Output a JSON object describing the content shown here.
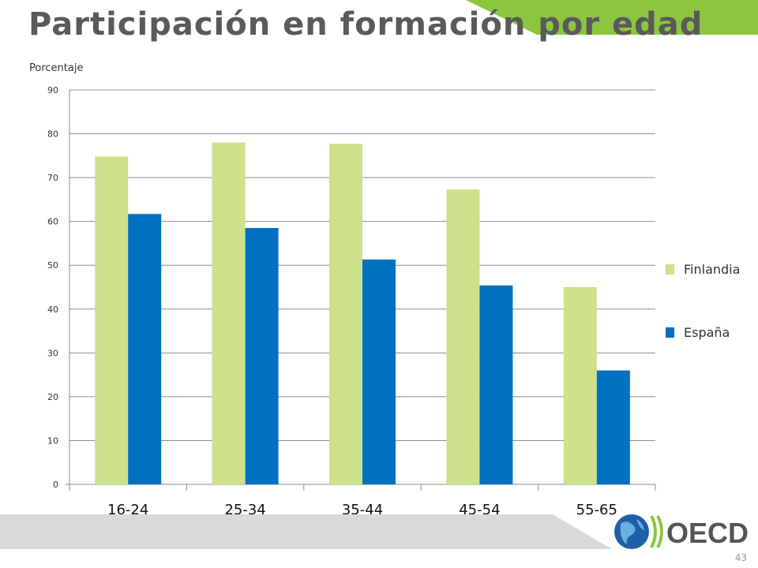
{
  "slide": {
    "title": "Participación en formación por edad",
    "page_number": "43",
    "logo_text": "OECD"
  },
  "colors": {
    "finlandia": "#cce189",
    "espana": "#0070c0",
    "accent_green": "#8cc63f",
    "footer_grey": "#d9d9d9",
    "title": "#5a5a5a"
  },
  "chart_data": {
    "type": "bar",
    "title": "",
    "ylabel": "Porcentaje",
    "xlabel": "",
    "categories": [
      "16-24",
      "25-34",
      "35-44",
      "45-54",
      "55-65"
    ],
    "series": [
      {
        "name": "Finlandia",
        "values": [
          74.8,
          78.0,
          77.7,
          67.3,
          45.0
        ]
      },
      {
        "name": "España",
        "values": [
          61.7,
          58.5,
          51.3,
          45.4,
          26.0
        ]
      }
    ],
    "ylim": [
      0,
      90
    ],
    "yticks": [
      0,
      10,
      20,
      30,
      40,
      50,
      60,
      70,
      80,
      90
    ],
    "grid": true,
    "legend_position": "right"
  }
}
